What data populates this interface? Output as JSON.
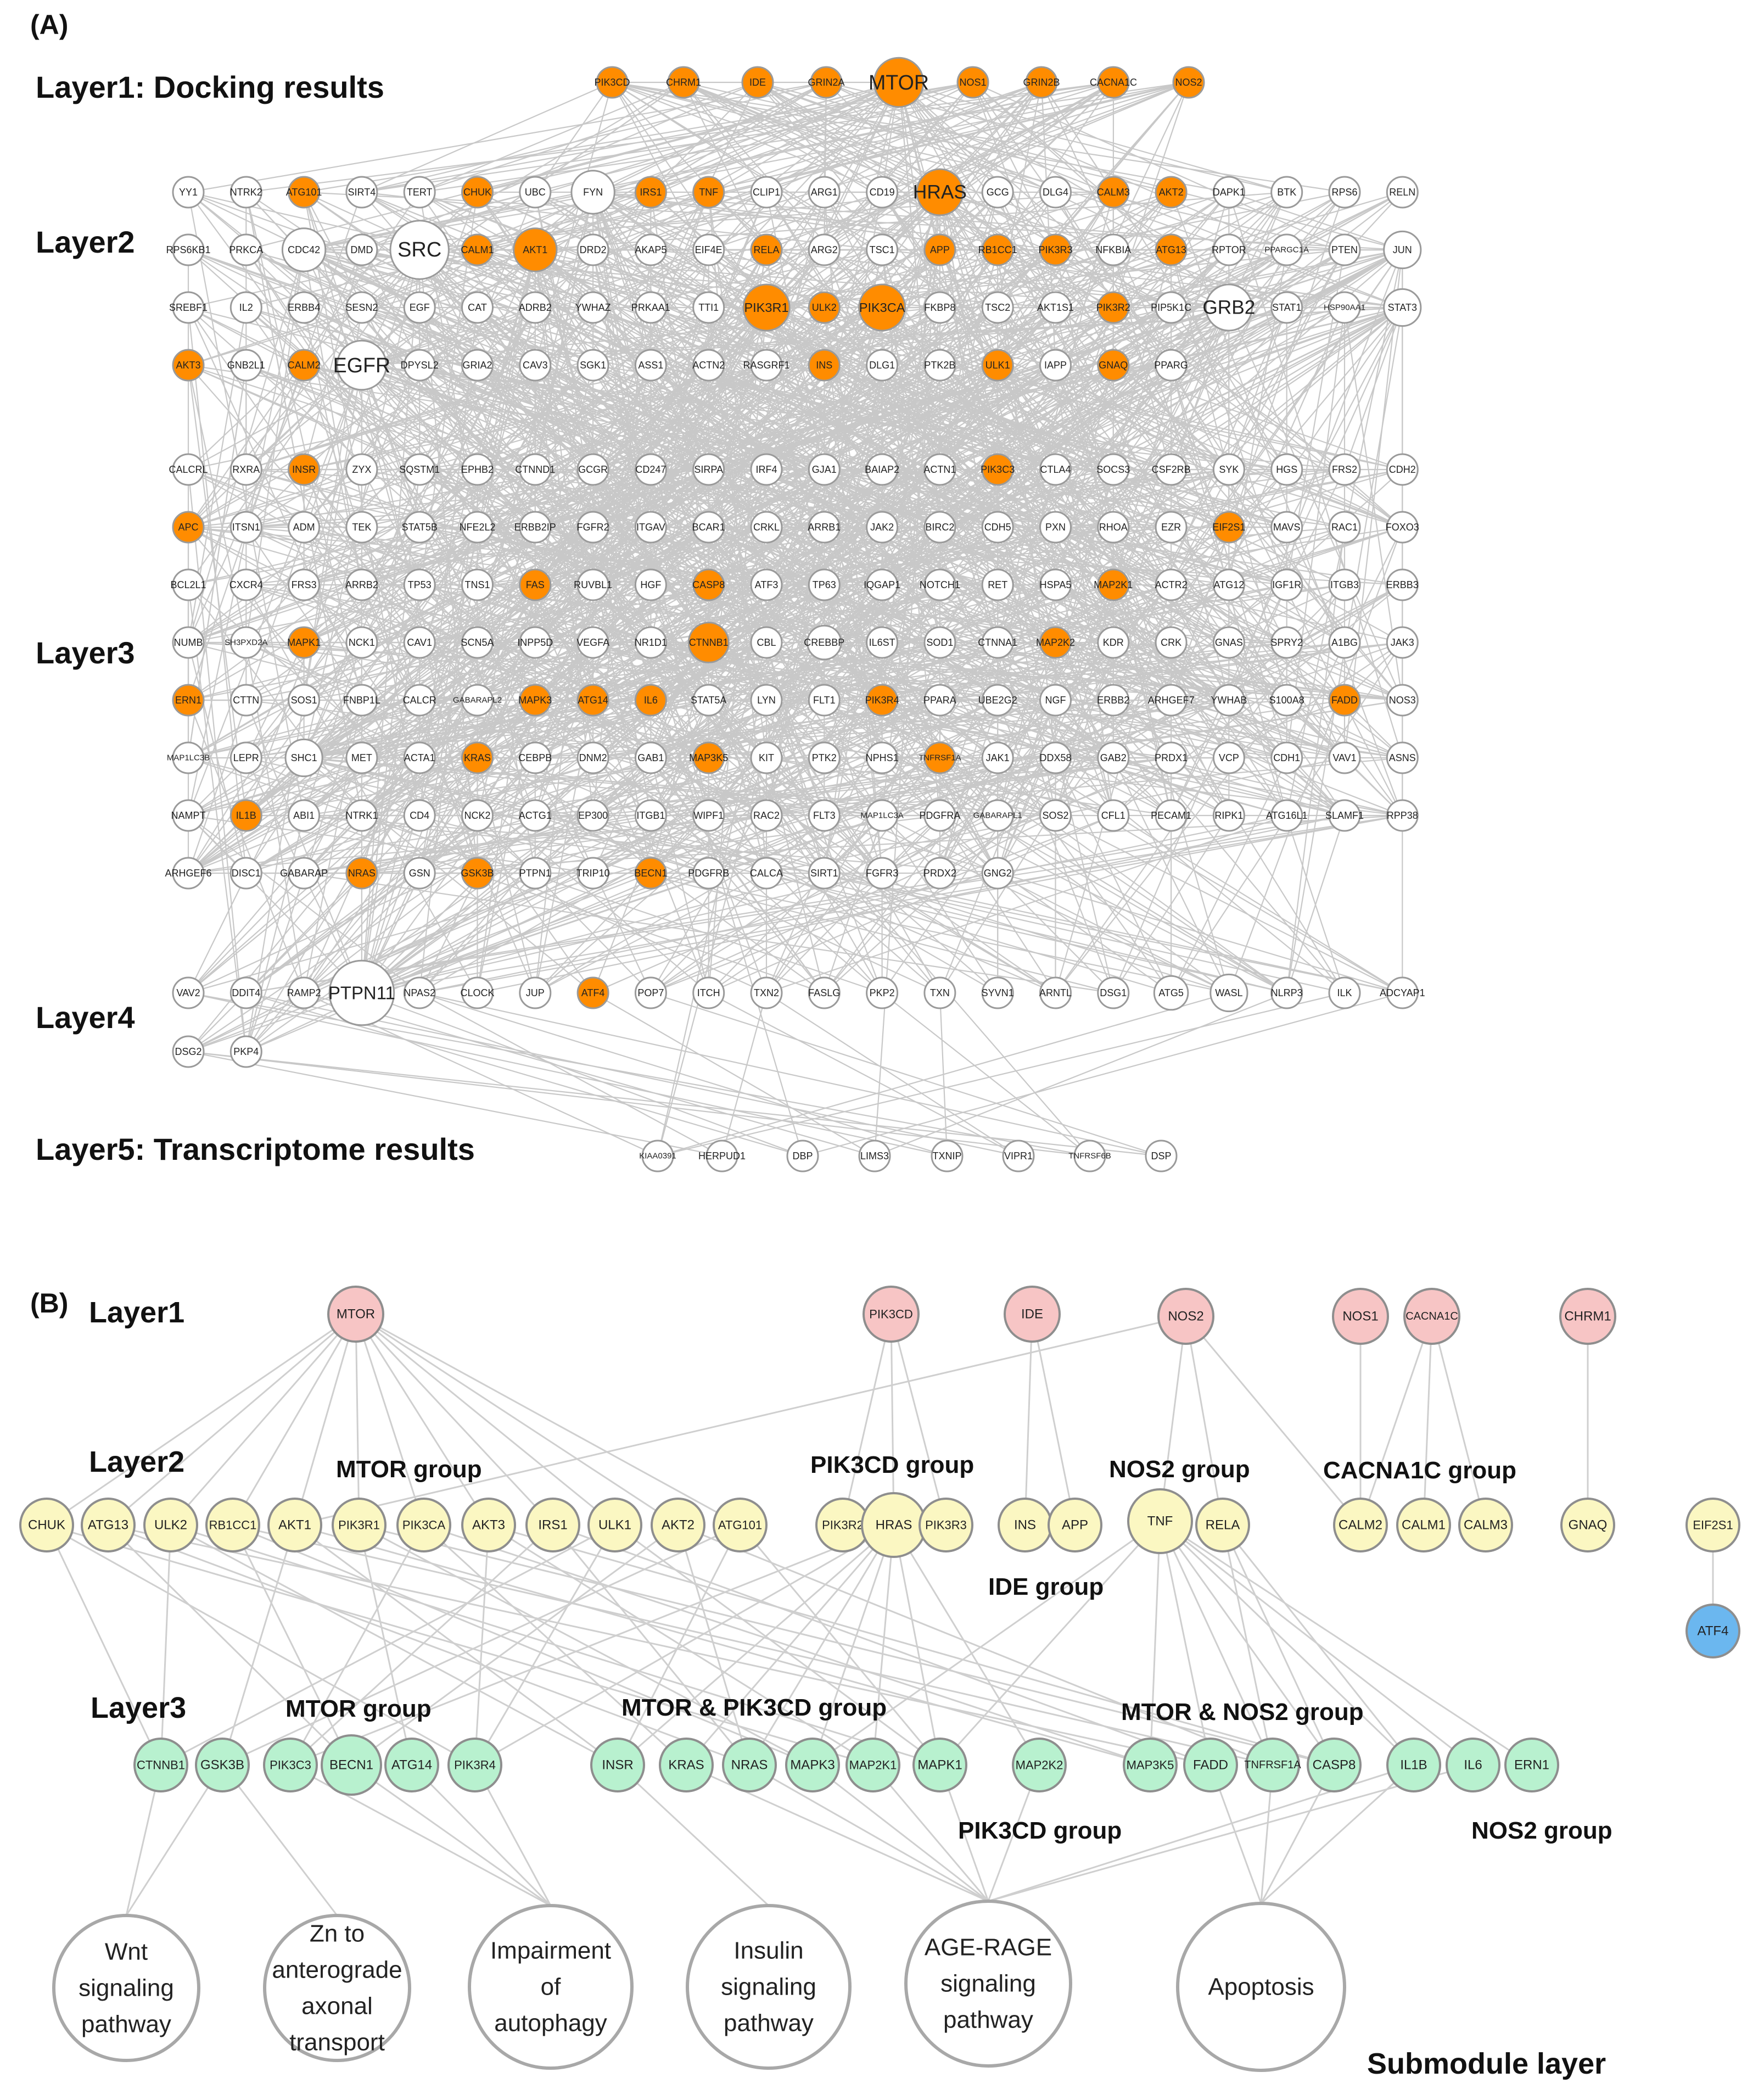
{
  "panel_a": {
    "tag": "(A)",
    "layer_labels": [
      "Layer1: Docking results",
      "Layer2",
      "Layer3",
      "Layer4",
      "Layer5: Transcriptome results"
    ],
    "highlight_color": "#ff8c00",
    "node_border": "#9a9a9a",
    "edge_color": "#c8c8c8",
    "layer1": [
      "PIK3CD",
      "CHRM1",
      "IDE",
      "GRIN2A",
      "MTOR",
      "NOS1",
      "GRIN2B",
      "CACNA1C",
      "NOS2"
    ],
    "layer2_rows": [
      [
        "YY1",
        "NTRK2",
        "ATG101",
        "SIRT4",
        "TERT",
        "CHUK",
        "UBC",
        "FYN",
        "IRS1",
        "TNF",
        "CLIP1",
        "ARG1",
        "CD19",
        "HRAS",
        "GCG",
        "DLG4",
        "CALM3",
        "AKT2",
        "DAPK1",
        "BTK",
        "RPS6",
        "RELN"
      ],
      [
        "RPS6KB1",
        "PRKCA",
        "CDC42",
        "DMD",
        "SRC",
        "CALM1",
        "AKT1",
        "DRD2",
        "AKAP5",
        "EIF4E",
        "RELA",
        "ARG2",
        "TSC1",
        "APP",
        "RB1CC1",
        "PIK3R3",
        "NFKBIA",
        "ATG13",
        "RPTOR",
        "PPARGC1A",
        "PTEN",
        "JUN"
      ],
      [
        "SREBF1",
        "IL2",
        "ERBB4",
        "SESN2",
        "EGF",
        "CAT",
        "ADRB2",
        "YWHAZ",
        "PRKAA1",
        "TTI1",
        "PIK3R1",
        "ULK2",
        "PIK3CA",
        "FKBP8",
        "TSC2",
        "AKT1S1",
        "PIK3R2",
        "PIP5K1C",
        "GRB2",
        "STAT1",
        "HSP90AA1",
        "STAT3"
      ],
      [
        "AKT3",
        "GNB2L1",
        "CALM2",
        "EGFR",
        "DPYSL2",
        "GRIA2",
        "CAV3",
        "SGK1",
        "ASS1",
        "ACTN2",
        "RASGRF1",
        "INS",
        "DLG1",
        "PTK2B",
        "ULK1",
        "IAPP",
        "GNAQ",
        "PPARG"
      ]
    ],
    "layer3_rows": [
      [
        "CALCRL",
        "RXRA",
        "INSR",
        "ZYX",
        "SQSTM1",
        "EPHB2",
        "CTNND1",
        "GCGR",
        "CD247",
        "SIRPA",
        "IRF4",
        "GJA1",
        "BAIAP2",
        "ACTN1",
        "PIK3C3",
        "CTLA4",
        "SOCS3",
        "CSF2RB",
        "SYK",
        "HGS",
        "FRS2",
        "CDH2"
      ],
      [
        "APC",
        "ITSN1",
        "ADM",
        "TEK",
        "STAT5B",
        "NFE2L2",
        "ERBB2IP",
        "FGFR2",
        "ITGAV",
        "BCAR1",
        "CRKL",
        "ARRB1",
        "JAK2",
        "BIRC2",
        "CDH5",
        "PXN",
        "RHOA",
        "EZR",
        "EIF2S1",
        "MAVS",
        "RAC1",
        "FOXO3"
      ],
      [
        "BCL2L1",
        "CXCR4",
        "FRS3",
        "ARRB2",
        "TP53",
        "TNS1",
        "FAS",
        "RUVBL1",
        "HGF",
        "CASP8",
        "ATF3",
        "TP63",
        "IQGAP1",
        "NOTCH1",
        "RET",
        "HSPA5",
        "MAP2K1",
        "ACTR2",
        "ATG12",
        "IGF1R",
        "ITGB3",
        "ERBB3"
      ],
      [
        "NUMB",
        "SH3PXD2A",
        "MAPK1",
        "NCK1",
        "CAV1",
        "SCN5A",
        "INPP5D",
        "VEGFA",
        "NR1D1",
        "CTNNB1",
        "CBL",
        "CREBBP",
        "IL6ST",
        "SOD1",
        "CTNNA1",
        "MAP2K2",
        "KDR",
        "CRK",
        "GNAS",
        "SPRY2",
        "A1BG",
        "JAK3"
      ],
      [
        "ERN1",
        "CTTN",
        "SOS1",
        "FNBP1L",
        "CALCR",
        "GABARAPL2",
        "MAPK3",
        "ATG14",
        "IL6",
        "STAT5A",
        "LYN",
        "FLT1",
        "PIK3R4",
        "PPARA",
        "UBE2G2",
        "NGF",
        "ERBB2",
        "ARHGEF7",
        "YWHAB",
        "S100A8",
        "FADD",
        "NOS3"
      ],
      [
        "MAP1LC3B",
        "LEPR",
        "SHC1",
        "MET",
        "ACTA1",
        "KRAS",
        "CEBPB",
        "DNM2",
        "GAB1",
        "MAP3K5",
        "KIT",
        "PTK2",
        "NPHS1",
        "TNFRSF1A",
        "JAK1",
        "DDX58",
        "GAB2",
        "PRDX1",
        "VCP",
        "CDH1",
        "VAV1",
        "ASNS"
      ],
      [
        "NAMPT",
        "IL1B",
        "ABI1",
        "NTRK1",
        "CD4",
        "NCK2",
        "ACTG1",
        "EP300",
        "ITGB1",
        "WIPF1",
        "RAC2",
        "FLT3",
        "MAP1LC3A",
        "PDGFRA",
        "GABARAPL1",
        "SOS2",
        "CFL1",
        "PECAM1",
        "RIPK1",
        "ATG16L1",
        "SLAMF1",
        "RPP38"
      ],
      [
        "ARHGEF6",
        "DISC1",
        "GABARAP",
        "NRAS",
        "GSN",
        "GSK3B",
        "PTPN1",
        "TRIP10",
        "BECN1",
        "PDGFRB",
        "CALCA",
        "SIRT1",
        "FGFR3",
        "PRDX2",
        "GNG2"
      ]
    ],
    "layer4_rows": [
      [
        "VAV2",
        "DDIT4",
        "RAMP2",
        "PTPN11",
        "NPAS2",
        "CLOCK",
        "JUP",
        "ATF4",
        "POP7",
        "ITCH",
        "TXN2",
        "FASLG",
        "PKP2",
        "TXN",
        "SYVN1",
        "ARNTL",
        "DSG1",
        "ATG5",
        "WASL",
        "NLRP3",
        "ILK",
        "ADCYAP1"
      ],
      [
        "DSG2",
        "PKP4"
      ]
    ],
    "layer5": [
      "KIAA0391",
      "HERPUD1",
      "DBP",
      "LIMS3",
      "TXNIP",
      "VIPR1",
      "TNFRSF6B",
      "DSP"
    ],
    "orange_nodes": [
      "PIK3CD",
      "CHRM1",
      "IDE",
      "GRIN2A",
      "MTOR",
      "NOS1",
      "GRIN2B",
      "CACNA1C",
      "NOS2",
      "ATG101",
      "CHUK",
      "IRS1",
      "TNF",
      "HRAS",
      "CALM3",
      "AKT2",
      "CALM1",
      "AKT1",
      "RELA",
      "APP",
      "RB1CC1",
      "PIK3R3",
      "ATG13",
      "PIK3R1",
      "ULK2",
      "PIK3CA",
      "PIK3R2",
      "AKT3",
      "CALM2",
      "INS",
      "ULK1",
      "GNAQ",
      "INSR",
      "PIK3C3",
      "APC",
      "EIF2S1",
      "FAS",
      "CASP8",
      "MAP2K1",
      "MAPK1",
      "CTNNB1",
      "MAP2K2",
      "ERN1",
      "MAPK3",
      "ATG14",
      "IL6",
      "PIK3R4",
      "FADD",
      "KRAS",
      "MAP3K5",
      "TNFRSF1A",
      "IL1B",
      "NRAS",
      "GSK3B",
      "BECN1",
      "ATF4"
    ],
    "big_nodes": {
      "MTOR": 1.6,
      "FYN": 1.4,
      "HRAS": 1.5,
      "CDC42": 1.4,
      "SRC": 1.9,
      "AKT1": 1.4,
      "JUN": 1.2,
      "PIK3R1": 1.5,
      "PIK3CA": 1.5,
      "GRB2": 1.5,
      "STAT3": 1.2,
      "EGFR": 1.6,
      "CTNNB1": 1.3,
      "SHC1": 1.2,
      "PTPN11": 2.1,
      "ATG5": 1.1,
      "WASL": 1.2,
      "CREBBP": 1.1
    }
  },
  "panel_b": {
    "tag": "(B)",
    "layer_labels": [
      "Layer1",
      "Layer2",
      "Layer3",
      "Submodule layer"
    ],
    "colors": {
      "layer1": "#f7c5c5",
      "layer2": "#fbf7c2",
      "layer3": "#b8f1cf",
      "atf4": "#6bb7ef",
      "node_border": "#8e8e8e",
      "edge": "#cfcfcf"
    },
    "layer1": [
      "MTOR",
      "PIK3CD",
      "IDE",
      "NOS2",
      "NOS1",
      "CACNA1C",
      "CHRM1"
    ],
    "layer2": [
      "CHUK",
      "ATG13",
      "ULK2",
      "RB1CC1",
      "AKT1",
      "PIK3R1",
      "PIK3CA",
      "AKT3",
      "IRS1",
      "ULK1",
      "AKT2",
      "ATG101",
      "PIK3R2",
      "HRAS",
      "PIK3R3",
      "INS",
      "APP",
      "TNF",
      "RELA",
      "CALM2",
      "CALM1",
      "CALM3",
      "GNAQ",
      "EIF2S1"
    ],
    "layer3": [
      "CTNNB1",
      "GSK3B",
      "PIK3C3",
      "BECN1",
      "ATG14",
      "PIK3R4",
      "INSR",
      "KRAS",
      "NRAS",
      "MAPK3",
      "MAP2K1",
      "MAPK1",
      "MAP2K2",
      "MAP3K5",
      "FADD",
      "TNFRSF1A",
      "CASP8",
      "IL1B",
      "IL6",
      "ERN1",
      "ATF4"
    ],
    "group_labels": [
      "MTOR group",
      "PIK3CD group",
      "NOS2 group",
      "IDE group",
      "CACNA1C group",
      "MTOR group",
      "MTOR & PIK3CD group",
      "MTOR & NOS2 group",
      "PIK3CD group",
      "NOS2 group"
    ],
    "pathways": [
      [
        "Wnt",
        "signaling",
        "pathway"
      ],
      [
        "Zn to",
        "anterograde",
        "axonal",
        "transport"
      ],
      [
        "Impairment",
        "of",
        "autophagy"
      ],
      [
        "Insulin",
        "signaling",
        "pathway"
      ],
      [
        "AGE-RAGE",
        "signaling",
        "pathway"
      ],
      [
        "Apoptosis"
      ]
    ]
  }
}
